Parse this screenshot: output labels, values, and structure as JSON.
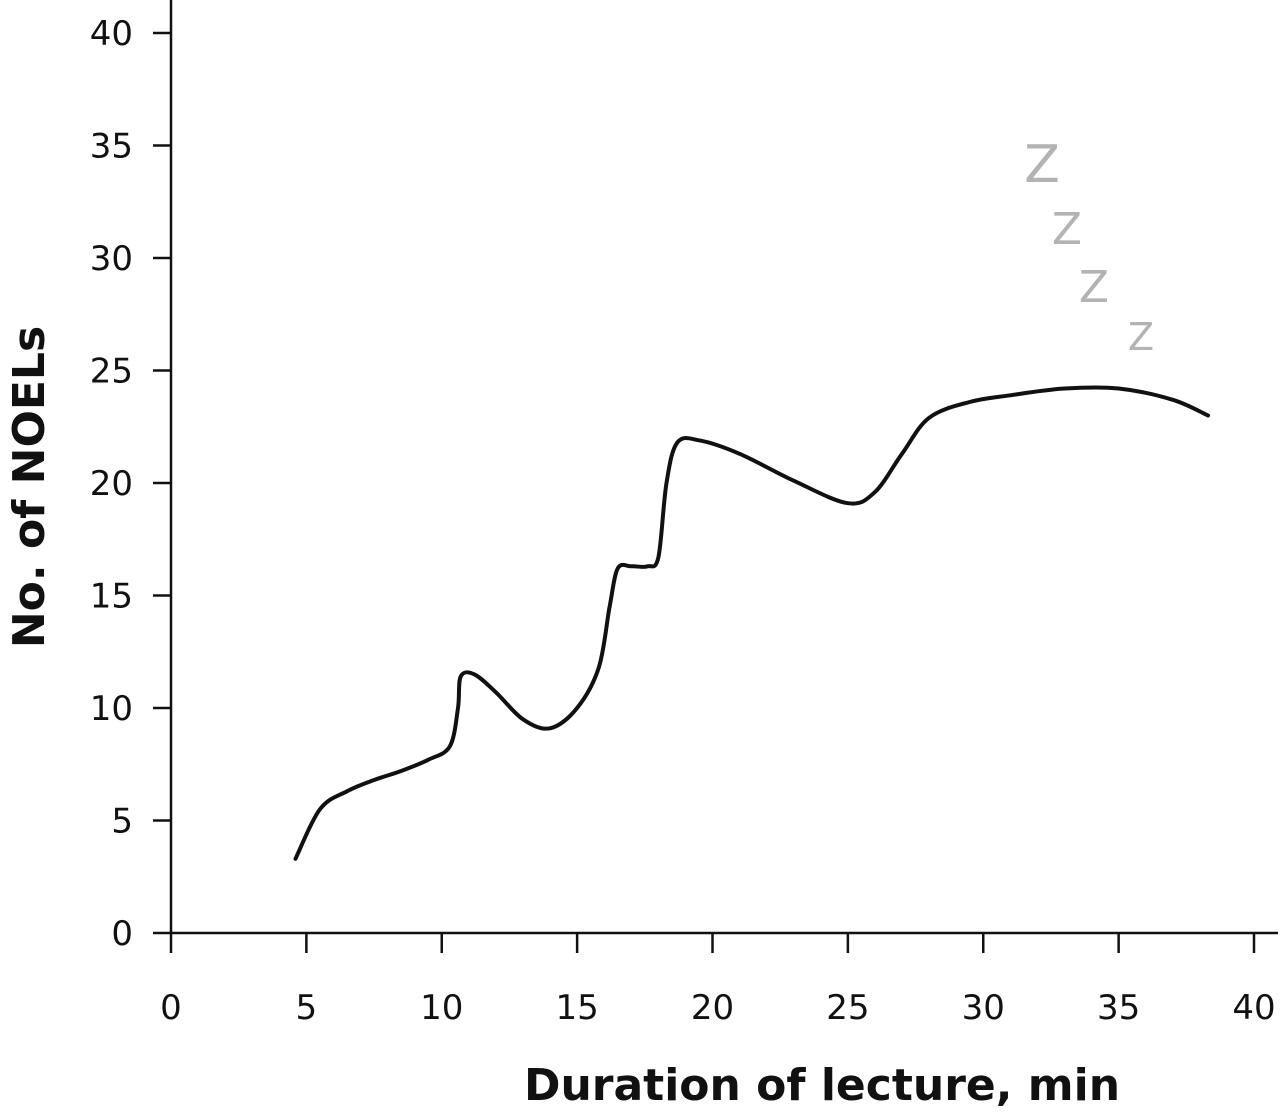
{
  "chart_data": {
    "type": "line",
    "title": "",
    "xlabel": "Duration of lecture, min",
    "ylabel": "No. of NOELs",
    "xlim": [
      0,
      40
    ],
    "ylim": [
      0,
      40
    ],
    "xticks": [
      0,
      5,
      10,
      15,
      20,
      25,
      30,
      35,
      40
    ],
    "yticks": [
      0,
      5,
      10,
      15,
      20,
      25,
      30,
      35,
      40
    ],
    "grid": false,
    "line_color": "#111111",
    "annotation_color": "#b3b3b3",
    "series": [
      {
        "x": [
          4.6,
          5.5,
          6.5,
          7.5,
          8.5,
          9.5,
          10.3,
          10.6,
          10.7,
          11.2,
          12.0,
          13.0,
          14.0,
          15.0,
          15.8,
          16.2,
          16.5,
          17.0,
          17.6,
          18.0,
          18.3,
          18.7,
          19.5,
          21.0,
          23.0,
          25.0,
          26.0,
          27.0,
          28.0,
          29.5,
          31.0,
          33.0,
          35.0,
          37.0,
          38.3
        ],
        "y": [
          3.3,
          5.5,
          6.3,
          6.8,
          7.2,
          7.7,
          8.3,
          10.0,
          11.4,
          11.5,
          10.7,
          9.5,
          9.1,
          10.0,
          11.8,
          14.5,
          16.2,
          16.3,
          16.3,
          16.7,
          20.0,
          21.8,
          21.9,
          21.3,
          20.1,
          19.1,
          19.6,
          21.3,
          22.9,
          23.6,
          23.9,
          24.2,
          24.2,
          23.7,
          23.0
        ]
      }
    ],
    "annotations": [
      "Z",
      "Z",
      "Z",
      "Z"
    ]
  }
}
